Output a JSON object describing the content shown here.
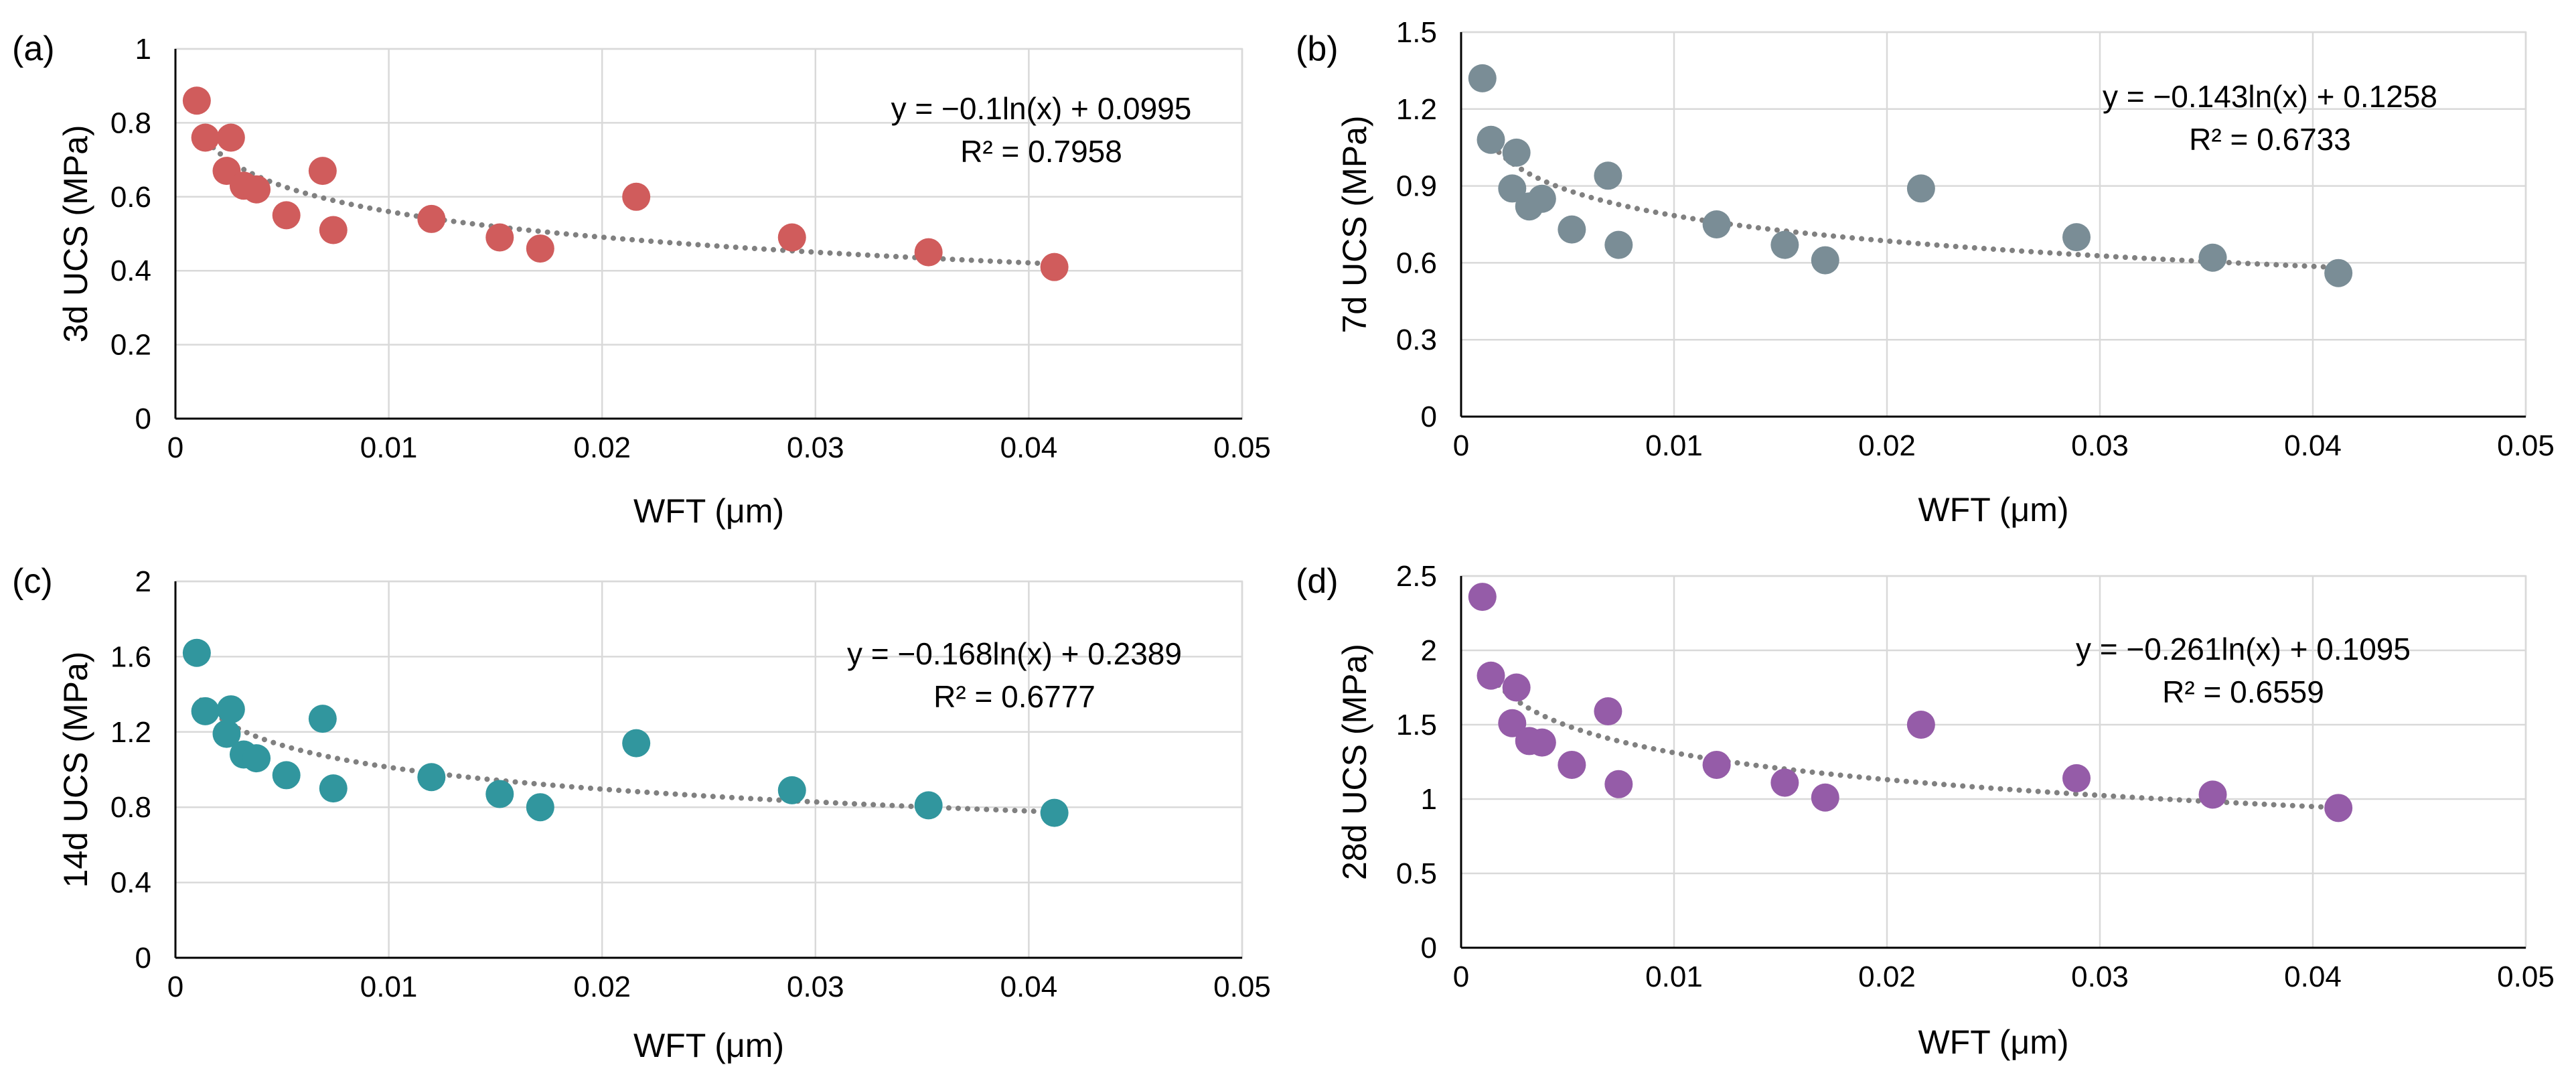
{
  "chart_data": [
    {
      "panel_label": "(a)",
      "type": "scatter",
      "title": "",
      "xlabel": "WFT (μm)",
      "ylabel": "3d UCS (MPa)",
      "xlim": [
        0,
        0.05
      ],
      "ylim": [
        0,
        1
      ],
      "xticks": [
        0,
        0.01,
        0.02,
        0.03,
        0.04,
        0.05
      ],
      "xtick_labels": [
        "0",
        "0.01",
        "0.02",
        "0.03",
        "0.04",
        "0.05"
      ],
      "yticks": [
        0,
        0.2,
        0.4,
        0.6,
        0.8,
        1
      ],
      "ytick_labels": [
        "0",
        "0.2",
        "0.4",
        "0.6",
        "0.8",
        "1"
      ],
      "grid": true,
      "marker_color": "#d05c5c",
      "series": [
        {
          "name": "3d UCS",
          "x": [
            0.001,
            0.0014,
            0.0024,
            0.0026,
            0.0032,
            0.0038,
            0.0052,
            0.0069,
            0.0074,
            0.012,
            0.0152,
            0.0171,
            0.0216,
            0.0289,
            0.0353,
            0.0412
          ],
          "y": [
            0.86,
            0.76,
            0.67,
            0.76,
            0.63,
            0.62,
            0.55,
            0.67,
            0.51,
            0.54,
            0.49,
            0.46,
            0.6,
            0.49,
            0.45,
            0.41
          ]
        }
      ],
      "trendline": {
        "type": "log",
        "a": -0.1,
        "b": 0.0995,
        "x_range": [
          0.0012,
          0.0412
        ]
      },
      "equation": "y = −0.1ln(x) + 0.0995",
      "r_squared": "R² = 0.7958"
    },
    {
      "panel_label": "(b)",
      "type": "scatter",
      "title": "",
      "xlabel": "WFT (μm)",
      "ylabel": "7d UCS (MPa)",
      "xlim": [
        0,
        0.05
      ],
      "ylim": [
        0,
        1.5
      ],
      "xticks": [
        0,
        0.01,
        0.02,
        0.03,
        0.04,
        0.05
      ],
      "xtick_labels": [
        "0",
        "0.01",
        "0.02",
        "0.03",
        "0.04",
        "0.05"
      ],
      "yticks": [
        0,
        0.3,
        0.6,
        0.9,
        1.2,
        1.5
      ],
      "ytick_labels": [
        "0",
        "0.3",
        "0.6",
        "0.9",
        "1.2",
        "1.5"
      ],
      "grid": true,
      "marker_color": "#7a8d96",
      "series": [
        {
          "name": "7d UCS",
          "x": [
            0.001,
            0.0014,
            0.0024,
            0.0026,
            0.0032,
            0.0038,
            0.0052,
            0.0069,
            0.0074,
            0.012,
            0.0152,
            0.0171,
            0.0216,
            0.0289,
            0.0353,
            0.0412
          ],
          "y": [
            1.32,
            1.08,
            0.89,
            1.03,
            0.82,
            0.85,
            0.73,
            0.94,
            0.67,
            0.75,
            0.67,
            0.61,
            0.89,
            0.7,
            0.62,
            0.56
          ]
        }
      ],
      "trendline": {
        "type": "log",
        "a": -0.143,
        "b": 0.1258,
        "x_range": [
          0.0012,
          0.0412
        ]
      },
      "equation": "y = −0.143ln(x) + 0.1258",
      "r_squared": "R² = 0.6733"
    },
    {
      "panel_label": "(c)",
      "type": "scatter",
      "title": "",
      "xlabel": "WFT (μm)",
      "ylabel": "14d UCS (MPa)",
      "xlim": [
        0,
        0.05
      ],
      "ylim": [
        0,
        2
      ],
      "xticks": [
        0,
        0.01,
        0.02,
        0.03,
        0.04,
        0.05
      ],
      "xtick_labels": [
        "0",
        "0.01",
        "0.02",
        "0.03",
        "0.04",
        "0.05"
      ],
      "yticks": [
        0,
        0.4,
        0.8,
        1.2,
        1.6,
        2
      ],
      "ytick_labels": [
        "0",
        "0.4",
        "0.8",
        "1.2",
        "1.6",
        "2"
      ],
      "grid": true,
      "marker_color": "#31969e",
      "series": [
        {
          "name": "14d UCS",
          "x": [
            0.001,
            0.0014,
            0.0024,
            0.0026,
            0.0032,
            0.0038,
            0.0052,
            0.0069,
            0.0074,
            0.012,
            0.0152,
            0.0171,
            0.0216,
            0.0289,
            0.0353,
            0.0412
          ],
          "y": [
            1.62,
            1.31,
            1.19,
            1.32,
            1.08,
            1.06,
            0.97,
            1.27,
            0.9,
            0.96,
            0.87,
            0.8,
            1.14,
            0.89,
            0.81,
            0.77
          ]
        }
      ],
      "trendline": {
        "type": "log",
        "a": -0.168,
        "b": 0.2389,
        "x_range": [
          0.0012,
          0.0412
        ]
      },
      "equation": "y = −0.168ln(x) + 0.2389",
      "r_squared": "R² = 0.6777"
    },
    {
      "panel_label": "(d)",
      "type": "scatter",
      "title": "",
      "xlabel": "WFT (μm)",
      "ylabel": "28d UCS (MPa)",
      "xlim": [
        0,
        0.05
      ],
      "ylim": [
        0,
        2.5
      ],
      "xticks": [
        0,
        0.01,
        0.02,
        0.03,
        0.04,
        0.05
      ],
      "xtick_labels": [
        "0",
        "0.01",
        "0.02",
        "0.03",
        "0.04",
        "0.05"
      ],
      "yticks": [
        0,
        0.5,
        1,
        1.5,
        2,
        2.5
      ],
      "ytick_labels": [
        "0",
        "0.5",
        "1",
        "1.5",
        "2",
        "2.5"
      ],
      "grid": true,
      "marker_color": "#955ca8",
      "series": [
        {
          "name": "28d UCS",
          "x": [
            0.001,
            0.0014,
            0.0024,
            0.0026,
            0.0032,
            0.0038,
            0.0052,
            0.0069,
            0.0074,
            0.012,
            0.0152,
            0.0171,
            0.0216,
            0.0289,
            0.0353,
            0.0412
          ],
          "y": [
            2.36,
            1.83,
            1.51,
            1.75,
            1.39,
            1.38,
            1.23,
            1.59,
            1.1,
            1.23,
            1.11,
            1.01,
            1.5,
            1.14,
            1.03,
            0.94
          ]
        }
      ],
      "trendline": {
        "type": "log",
        "a": -0.261,
        "b": 0.1095,
        "x_range": [
          0.0012,
          0.0412
        ]
      },
      "equation": "y = −0.261ln(x) + 0.1095",
      "r_squared": "R² = 0.6559"
    }
  ]
}
